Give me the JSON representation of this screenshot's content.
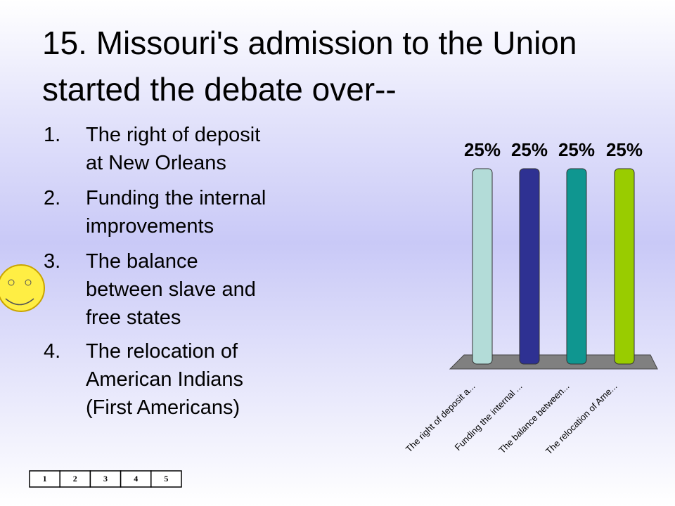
{
  "title": "15.  Missouri's admission to the Union started the debate over--",
  "choices": [
    {
      "number": "1.",
      "lines": [
        "The right of deposit",
        "at New Orleans"
      ]
    },
    {
      "number": "2.",
      "lines": [
        "Funding the internal",
        "improvements"
      ]
    },
    {
      "number": "3.",
      "lines": [
        "The balance",
        "between slave and",
        "free states"
      ]
    },
    {
      "number": "4.",
      "lines": [
        "The relocation of",
        "American Indians",
        "(First Americans)"
      ]
    }
  ],
  "counter": [
    "1",
    "2",
    "3",
    "4",
    "5"
  ],
  "chart_data": {
    "type": "bar",
    "categories": [
      "The right of deposit a...",
      "Funding the internal ...",
      "The balance between...",
      "The relocation of Ame..."
    ],
    "values": [
      25,
      25,
      25,
      25
    ],
    "value_labels": [
      "25%",
      "25%",
      "25%",
      "25%"
    ],
    "colors": [
      "#b3dcd8",
      "#2e3192",
      "#0f9690",
      "#99cc00"
    ],
    "ylim": [
      0,
      25
    ]
  }
}
